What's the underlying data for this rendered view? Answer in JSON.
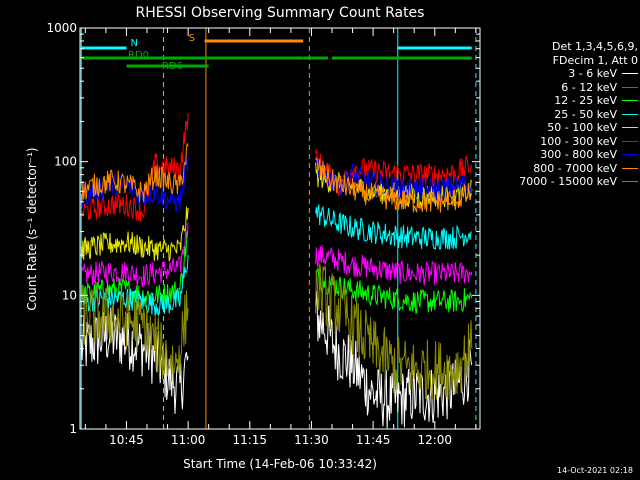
{
  "chart_data": {
    "type": "line",
    "title": "RHESSI Observing Summary Count Rates",
    "xlabel": "Start Time (14-Feb-06 10:33:42)",
    "ylabel": "Count Rate (s⁻¹ detector⁻¹)",
    "yscale": "log",
    "ylim": [
      1,
      1000
    ],
    "xlim": [
      "10:33:42",
      "12:11:00"
    ],
    "x_ticks": [
      "10:45",
      "11:00",
      "11:15",
      "11:30",
      "11:45",
      "12:00"
    ],
    "y_ticks": [
      "1",
      "10",
      "100",
      "1000"
    ],
    "legend_header": [
      "Det 1,3,4,5,6,9,",
      "FDecim 1, Att 0"
    ],
    "legend_position": "right",
    "series": [
      {
        "name": "3 - 6 keV",
        "color": "#ffffff",
        "segments": [
          {
            "x": [
              "10:34",
              "10:40",
              "10:47",
              "10:52",
              "10:55",
              "10:58",
              "11:00"
            ],
            "y": [
              4.0,
              5.0,
              4.5,
              3.5,
              2.5,
              2.0,
              3.5
            ]
          },
          {
            "x": [
              "11:31",
              "11:33",
              "11:36",
              "11:40",
              "11:45",
              "11:50",
              "11:55",
              "12:00",
              "12:05",
              "12:09"
            ],
            "y": [
              7.0,
              6.0,
              4.0,
              3.0,
              1.8,
              1.6,
              1.8,
              1.8,
              2.0,
              3.0
            ]
          }
        ]
      },
      {
        "name": "6 - 12 keV",
        "color": "#ff00ff",
        "segments": [
          {
            "x": [
              "10:34",
              "10:40",
              "10:45",
              "10:49",
              "10:53",
              "10:58",
              "11:00"
            ],
            "y": [
              14,
              15,
              15,
              14,
              15,
              16,
              35
            ]
          },
          {
            "x": [
              "11:31",
              "11:35",
              "11:40",
              "11:45",
              "11:50",
              "11:55",
              "12:00",
              "12:05",
              "12:09"
            ],
            "y": [
              20,
              19,
              17,
              16,
              15,
              14.5,
              14.5,
              14.5,
              15
            ]
          }
        ]
      },
      {
        "name": "12 - 25 keV",
        "color": "#00ff00",
        "segments": [
          {
            "x": [
              "10:34",
              "10:40",
              "10:45",
              "10:49",
              "10:53",
              "10:58",
              "11:00"
            ],
            "y": [
              10,
              11,
              11,
              10,
              10,
              11,
              30
            ]
          },
          {
            "x": [
              "11:31",
              "11:35",
              "11:40",
              "11:45",
              "11:50",
              "11:55",
              "12:00",
              "12:05",
              "12:09"
            ],
            "y": [
              14,
              12,
              11,
              10,
              9.5,
              9,
              9,
              9,
              9.5
            ]
          }
        ]
      },
      {
        "name": "25 - 50 keV",
        "color": "#00ffff",
        "segments": [
          {
            "x": [
              "10:34",
              "10:40",
              "10:45",
              "10:49",
              "10:53",
              "10:58",
              "11:00"
            ],
            "y": [
              9,
              9.5,
              9.5,
              9,
              8.5,
              9,
              20
            ]
          },
          {
            "x": [
              "11:31",
              "11:35",
              "11:40",
              "11:45",
              "11:50",
              "11:55",
              "12:00",
              "12:05",
              "12:09"
            ],
            "y": [
              42,
              36,
              32,
              30,
              28,
              27,
              27,
              27,
              30
            ]
          }
        ]
      },
      {
        "name": "50 - 100 keV",
        "color": "#e8e800",
        "segments": [
          {
            "x": [
              "10:34",
              "10:40",
              "10:45",
              "10:49",
              "10:53",
              "10:58",
              "11:00"
            ],
            "y": [
              22,
              24,
              25,
              23,
              22,
              22,
              45
            ]
          },
          {
            "x": [
              "11:31",
              "11:35",
              "11:40",
              "11:45",
              "11:50",
              "11:55",
              "12:00",
              "12:05",
              "12:09"
            ],
            "y": [
              80,
              70,
              65,
              60,
              58,
              56,
              56,
              56,
              60
            ]
          }
        ]
      },
      {
        "name": "100 - 300 keV",
        "color": "#ff0000",
        "segments": [
          {
            "x": [
              "10:34",
              "10:38",
              "10:42",
              "10:46",
              "10:49",
              "10:52",
              "10:55",
              "10:58",
              "11:00"
            ],
            "y": [
              42,
              45,
              48,
              47,
              42,
              95,
              90,
              88,
              230
            ]
          },
          {
            "x": [
              "11:31",
              "11:35",
              "11:37",
              "11:40",
              "11:45",
              "11:50",
              "11:55",
              "12:00",
              "12:05",
              "12:09"
            ],
            "y": [
              105,
              75,
              65,
              90,
              85,
              82,
              80,
              80,
              82,
              95
            ]
          }
        ]
      },
      {
        "name": "300 - 800 keV",
        "color": "#0000ff",
        "segments": [
          {
            "x": [
              "10:34",
              "10:38",
              "10:42",
              "10:46",
              "10:49",
              "10:52",
              "10:55",
              "10:58",
              "11:00"
            ],
            "y": [
              55,
              62,
              68,
              64,
              55,
              60,
              52,
              50,
              110
            ]
          },
          {
            "x": [
              "11:31",
              "11:35",
              "11:37",
              "11:40",
              "11:45",
              "11:50",
              "11:55",
              "12:00",
              "12:05",
              "12:09"
            ],
            "y": [
              90,
              75,
              68,
              80,
              68,
              64,
              62,
              62,
              64,
              70
            ]
          }
        ]
      },
      {
        "name": "800 - 7000 keV",
        "color": "#ff8c00",
        "segments": [
          {
            "x": [
              "10:34",
              "10:38",
              "10:42",
              "10:46",
              "10:49",
              "10:52",
              "10:55",
              "10:58",
              "11:00"
            ],
            "y": [
              60,
              68,
              72,
              66,
              58,
              80,
              70,
              65,
              130
            ]
          },
          {
            "x": [
              "11:31",
              "11:35",
              "11:40",
              "11:45",
              "11:50",
              "11:55",
              "12:00",
              "12:05",
              "12:09"
            ],
            "y": [
              95,
              72,
              62,
              56,
              52,
              50,
              50,
              52,
              58
            ]
          }
        ]
      },
      {
        "name": "7000 - 15000 keV",
        "color": "#8b8b00",
        "segments": [
          {
            "x": [
              "10:34",
              "10:40",
              "10:45",
              "10:49",
              "10:53",
              "10:57",
              "11:00"
            ],
            "y": [
              7,
              7,
              6.5,
              6,
              4,
              3,
              8
            ]
          },
          {
            "x": [
              "11:31",
              "11:35",
              "11:40",
              "11:45",
              "11:50",
              "11:55",
              "12:00",
              "12:05",
              "12:09"
            ],
            "y": [
              12,
              9,
              6,
              4,
              3,
              2.8,
              2.8,
              2.8,
              4
            ]
          }
        ]
      }
    ],
    "state_bars": [
      {
        "label": "N",
        "color": "#00ffff",
        "segments": [
          [
            "10:34",
            "10:45"
          ],
          [
            "11:51",
            "12:09"
          ]
        ]
      },
      {
        "label": "S",
        "color": "#ff8c00",
        "segments": [
          [
            "11:04",
            "11:28"
          ]
        ]
      },
      {
        "label": "RD0",
        "color": "#00aa00",
        "segments": [
          [
            "10:34",
            "11:28"
          ],
          [
            "11:28",
            "11:34"
          ],
          [
            "11:35",
            "12:09"
          ]
        ]
      },
      {
        "label": "RD6",
        "color": "#00aa00",
        "segments": [
          [
            "10:45",
            "11:05"
          ]
        ]
      }
    ],
    "vlines": [
      {
        "x": "10:34:00",
        "color": "#00ffff",
        "style": "solid"
      },
      {
        "x": "10:54:00",
        "color": "#00ffff",
        "style": "dashed"
      },
      {
        "x": "11:04:20",
        "color": "#ff8c00",
        "style": "solid"
      },
      {
        "x": "11:29:30",
        "color": "#ff8c00",
        "style": "dashed"
      },
      {
        "x": "11:51:00",
        "color": "#00ffff",
        "style": "solid"
      },
      {
        "x": "12:10:00",
        "color": "#00ffff",
        "style": "dashed"
      }
    ],
    "timestamp": "14-Oct-2021 02:18"
  }
}
